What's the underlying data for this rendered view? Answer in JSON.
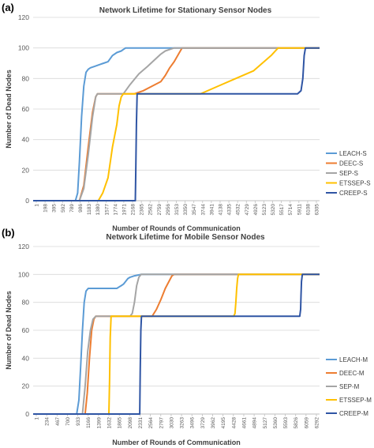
{
  "chart_data": [
    {
      "panel_label": "(a)",
      "type": "line",
      "title": "Network Lifetime for Stationary Sensor Nodes",
      "xlabel": "Number of Rounds of Communication",
      "ylabel": "Number of Dead Nodes",
      "ylim": [
        0,
        120
      ],
      "yticks": [
        0,
        20,
        40,
        60,
        80,
        100,
        120
      ],
      "xlim": [
        1,
        6500
      ],
      "xticks": [
        "1",
        "198",
        "395",
        "592",
        "789",
        "986",
        "1183",
        "1380",
        "1577",
        "1774",
        "1971",
        "2168",
        "2365",
        "2562",
        "2759",
        "2956",
        "3153",
        "3350",
        "3547",
        "3744",
        "3941",
        "4138",
        "4335",
        "4532",
        "4729",
        "4926",
        "5123",
        "5320",
        "5517",
        "5714",
        "5911",
        "6108",
        "6305"
      ],
      "grid": true,
      "legend_position": "right",
      "series": [
        {
          "name": "LEACH-S",
          "color": "#5B9BD5",
          "x": [
            1,
            960,
            1010,
            1050,
            1100,
            1150,
            1200,
            1250,
            1300,
            1400,
            1500,
            1600,
            1700,
            1800,
            1900,
            2000,
            2050,
            2100,
            6500
          ],
          "y": [
            0,
            0,
            5,
            25,
            55,
            75,
            84,
            86,
            87,
            88,
            89,
            90,
            91,
            95,
            97,
            98,
            99,
            100,
            100
          ]
        },
        {
          "name": "DEEC-S",
          "color": "#ED7D31",
          "x": [
            1,
            1050,
            1150,
            1250,
            1350,
            1420,
            1460,
            1500,
            2300,
            2500,
            2700,
            2900,
            3000,
            3100,
            3200,
            3300,
            3380,
            6500
          ],
          "y": [
            0,
            0,
            10,
            35,
            58,
            68,
            70,
            70,
            70,
            72,
            75,
            78,
            82,
            87,
            91,
            96,
            100,
            100
          ]
        },
        {
          "name": "SEP-S",
          "color": "#A5A5A5",
          "x": [
            1,
            1050,
            1150,
            1250,
            1350,
            1420,
            1460,
            1500,
            2050,
            2200,
            2400,
            2600,
            2750,
            2900,
            3000,
            3100,
            3200,
            6500
          ],
          "y": [
            0,
            0,
            8,
            30,
            55,
            68,
            70,
            70,
            70,
            76,
            83,
            88,
            92,
            96,
            98,
            99,
            100,
            100
          ]
        },
        {
          "name": "ETSSEP-S",
          "color": "#FFC000",
          "x": [
            1,
            1480,
            1580,
            1700,
            1800,
            1900,
            1950,
            2000,
            2050,
            2100,
            3800,
            4200,
            4600,
            5000,
            5200,
            5400,
            5560,
            6500
          ],
          "y": [
            0,
            0,
            5,
            15,
            35,
            50,
            62,
            68,
            70,
            70,
            70,
            75,
            80,
            85,
            90,
            95,
            100,
            100
          ]
        },
        {
          "name": "CREEP-S",
          "color": "#2F55A4",
          "x": [
            1,
            2320,
            2330,
            2345,
            2360,
            6000,
            6080,
            6120,
            6150,
            6180,
            6500
          ],
          "y": [
            0,
            0,
            20,
            50,
            70,
            70,
            72,
            80,
            95,
            100,
            100
          ]
        }
      ]
    },
    {
      "panel_label": "(b)",
      "type": "line",
      "title": "Network Lifetime for Mobile Sensor Nodes",
      "xlabel": "Number of Rounds of Communication",
      "ylabel": "Number of Dead Nodes",
      "ylim": [
        0,
        120
      ],
      "yticks": [
        0,
        20,
        40,
        60,
        80,
        100,
        120
      ],
      "xlim": [
        1,
        6500
      ],
      "xticks": [
        "1",
        "234",
        "467",
        "700",
        "933",
        "1166",
        "1399",
        "1632",
        "1865",
        "2098",
        "2331",
        "2564",
        "2797",
        "3030",
        "3263",
        "3496",
        "3729",
        "3962",
        "4195",
        "4428",
        "4661",
        "4894",
        "5127",
        "5360",
        "5593",
        "5826",
        "6059",
        "6292"
      ],
      "grid": true,
      "legend_position": "right",
      "series": [
        {
          "name": "LEACH-M",
          "color": "#5B9BD5",
          "x": [
            1,
            990,
            1040,
            1080,
            1120,
            1160,
            1200,
            1250,
            1300,
            1900,
            1950,
            2000,
            2050,
            2100,
            2150,
            2200,
            2300,
            2450,
            6500
          ],
          "y": [
            0,
            0,
            10,
            35,
            60,
            80,
            88,
            90,
            90,
            90,
            91,
            92,
            93,
            95,
            97,
            98,
            99,
            100,
            100
          ]
        },
        {
          "name": "DEEC-M",
          "color": "#ED7D31",
          "x": [
            1,
            1180,
            1230,
            1280,
            1330,
            1380,
            1420,
            1450,
            2700,
            2800,
            2900,
            3000,
            3100,
            3150,
            3200,
            6500
          ],
          "y": [
            0,
            0,
            15,
            40,
            60,
            68,
            70,
            70,
            70,
            75,
            82,
            90,
            96,
            99,
            100,
            100
          ]
        },
        {
          "name": "SEP-M",
          "color": "#A5A5A5",
          "x": [
            1,
            1120,
            1180,
            1240,
            1300,
            1360,
            1420,
            1500,
            2200,
            2250,
            2300,
            2350,
            2400,
            2450,
            6500
          ],
          "y": [
            0,
            0,
            20,
            45,
            60,
            68,
            70,
            70,
            70,
            72,
            80,
            92,
            98,
            100,
            100
          ]
        },
        {
          "name": "ETSSEP-M",
          "color": "#FFC000",
          "x": [
            1,
            1720,
            1735,
            1750,
            1770,
            4550,
            4580,
            4600,
            4620,
            4640,
            4660,
            6500
          ],
          "y": [
            0,
            0,
            25,
            55,
            70,
            70,
            72,
            80,
            90,
            97,
            100,
            100
          ]
        },
        {
          "name": "CREEP-M",
          "color": "#2F55A4",
          "x": [
            1,
            2420,
            2430,
            2445,
            2460,
            6050,
            6070,
            6080,
            6090,
            6110,
            6500
          ],
          "y": [
            0,
            0,
            30,
            60,
            70,
            70,
            75,
            85,
            95,
            100,
            100
          ]
        }
      ]
    }
  ]
}
